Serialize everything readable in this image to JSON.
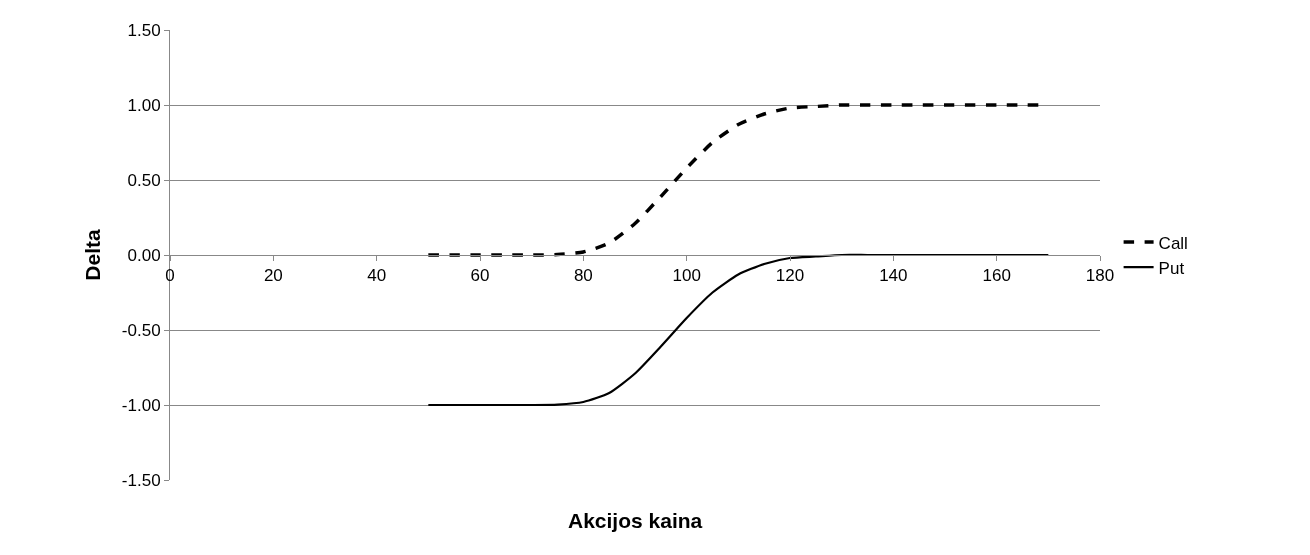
{
  "chart_data": {
    "type": "line",
    "xlabel": "Akcijos kaina",
    "ylabel": "Delta",
    "x": [
      50,
      55,
      60,
      65,
      70,
      75,
      80,
      85,
      90,
      95,
      100,
      105,
      110,
      115,
      120,
      125,
      130,
      135,
      140,
      145,
      150,
      155,
      160,
      165,
      170
    ],
    "series": [
      {
        "name": "Call",
        "color": "#000000",
        "line_style": "dashed",
        "values": [
          0,
          0,
          0,
          0,
          0,
          0.003,
          0.02,
          0.08,
          0.21,
          0.39,
          0.58,
          0.75,
          0.87,
          0.94,
          0.98,
          0.99,
          1,
          1,
          1,
          1,
          1,
          1,
          1,
          1,
          1
        ]
      },
      {
        "name": "Put",
        "color": "#000000",
        "line_style": "solid",
        "values": [
          -1,
          -1,
          -1,
          -1,
          -1,
          -0.997,
          -0.98,
          -0.92,
          -0.79,
          -0.61,
          -0.42,
          -0.25,
          -0.13,
          -0.06,
          -0.02,
          -0.01,
          0,
          0,
          0,
          0,
          0,
          0,
          0,
          0,
          0
        ]
      }
    ],
    "xlim": [
      0,
      180
    ],
    "xticks": [
      0,
      20,
      40,
      60,
      80,
      100,
      120,
      140,
      160,
      180
    ],
    "ylim": [
      -1.5,
      1.5
    ],
    "yticks": [
      {
        "value": -1.5,
        "label": "-1.50"
      },
      {
        "value": -1,
        "label": "-1.00"
      },
      {
        "value": -0.5,
        "label": "-0.50"
      },
      {
        "value": 0,
        "label": "0.00"
      },
      {
        "value": 0.5,
        "label": "0.50"
      },
      {
        "value": 1,
        "label": "1.00"
      },
      {
        "value": 1.5,
        "label": "1.50"
      }
    ],
    "grid": "y",
    "legend": "right",
    "marker": "none"
  }
}
